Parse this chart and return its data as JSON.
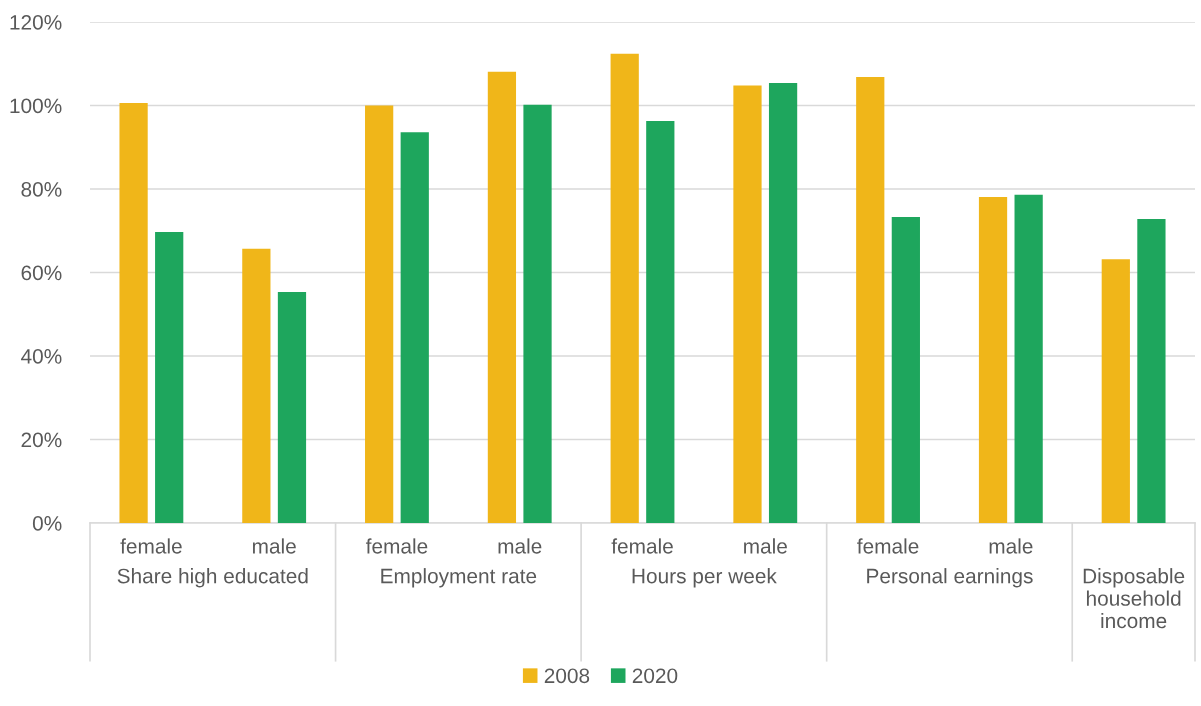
{
  "chart_data": {
    "type": "bar",
    "categories": [
      "female",
      "male",
      "female",
      "male",
      "female",
      "male",
      "female",
      "male",
      null
    ],
    "annotations": [
      "Share high educated",
      "Employment rate",
      "Hours per week",
      "Personal earnings",
      "Disposable\nhousehold\nincome"
    ],
    "series": [
      {
        "name": "2008",
        "color": "#f0b619",
        "values": [
          100.6,
          65.7,
          100.0,
          108.1,
          112.4,
          104.8,
          106.8,
          78.1,
          63.2
        ]
      },
      {
        "name": "2020",
        "color": "#1ea65d",
        "values": [
          69.7,
          55.3,
          93.6,
          100.2,
          96.3,
          105.4,
          73.3,
          78.6,
          72.8
        ]
      }
    ],
    "ylim": [
      0,
      120
    ],
    "yticks": [
      {
        "value": 0,
        "label": "0%"
      },
      {
        "value": 20,
        "label": "20%"
      },
      {
        "value": 40,
        "label": "40%"
      },
      {
        "value": 60,
        "label": "60%"
      },
      {
        "value": 80,
        "label": "80%"
      },
      {
        "value": 100,
        "label": "100%"
      },
      {
        "value": 120,
        "label": "120%"
      }
    ],
    "grid": "y",
    "legend": "bottom"
  }
}
